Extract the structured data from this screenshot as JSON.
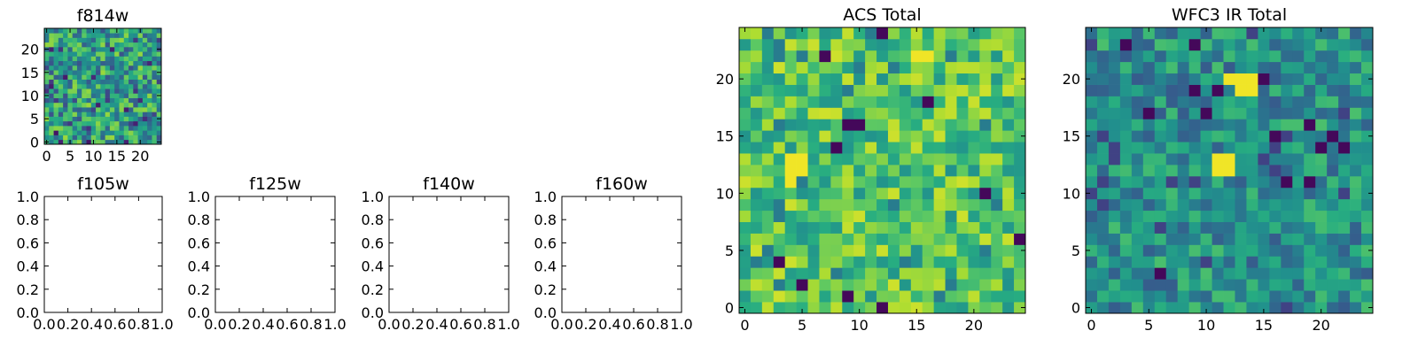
{
  "chart_data": [
    {
      "type": "heatmap",
      "title": "f814w",
      "xlim": [
        -0.5,
        24.5
      ],
      "ylim": [
        -0.5,
        24.5
      ],
      "xticks": [
        0,
        5,
        10,
        15,
        20
      ],
      "yticks": [
        0,
        5,
        10,
        15,
        20
      ],
      "shape": [
        25,
        25
      ],
      "origin": "lower",
      "colormap": "viridis",
      "grid": false
    },
    {
      "type": "heatmap",
      "title": "f105w",
      "xlim": [
        0.0,
        1.0
      ],
      "ylim": [
        0.0,
        1.0
      ],
      "xticks": [
        0.0,
        0.2,
        0.4,
        0.6,
        0.8,
        1.0
      ],
      "yticks": [
        0.0,
        0.2,
        0.4,
        0.6,
        0.8,
        1.0
      ],
      "empty": true,
      "grid": false
    },
    {
      "type": "heatmap",
      "title": "f125w",
      "xlim": [
        0.0,
        1.0
      ],
      "ylim": [
        0.0,
        1.0
      ],
      "xticks": [
        0.0,
        0.2,
        0.4,
        0.6,
        0.8,
        1.0
      ],
      "yticks": [
        0.0,
        0.2,
        0.4,
        0.6,
        0.8,
        1.0
      ],
      "empty": true,
      "grid": false
    },
    {
      "type": "heatmap",
      "title": "f140w",
      "xlim": [
        0.0,
        1.0
      ],
      "ylim": [
        0.0,
        1.0
      ],
      "xticks": [
        0.0,
        0.2,
        0.4,
        0.6,
        0.8,
        1.0
      ],
      "yticks": [
        0.0,
        0.2,
        0.4,
        0.6,
        0.8,
        1.0
      ],
      "empty": true,
      "grid": false
    },
    {
      "type": "heatmap",
      "title": "f160w",
      "xlim": [
        0.0,
        1.0
      ],
      "ylim": [
        0.0,
        1.0
      ],
      "xticks": [
        0.0,
        0.2,
        0.4,
        0.6,
        0.8,
        1.0
      ],
      "yticks": [
        0.0,
        0.2,
        0.4,
        0.6,
        0.8,
        1.0
      ],
      "empty": true,
      "grid": false
    },
    {
      "type": "heatmap",
      "title": "ACS Total",
      "xlim": [
        -0.5,
        24.5
      ],
      "ylim": [
        -0.5,
        24.5
      ],
      "xticks": [
        0,
        5,
        10,
        15,
        20
      ],
      "yticks": [
        0,
        5,
        10,
        15,
        20
      ],
      "shape": [
        25,
        25
      ],
      "origin": "lower",
      "colormap": "viridis",
      "grid": false,
      "value_bias": 0.72,
      "bright_patches": [
        [
          4,
          12
        ],
        [
          5,
          12
        ],
        [
          4,
          13
        ],
        [
          5,
          13
        ],
        [
          4,
          11
        ],
        [
          16,
          22
        ],
        [
          15,
          22
        ]
      ],
      "dark_cells": [
        [
          12,
          0
        ],
        [
          9,
          1
        ],
        [
          8,
          14
        ],
        [
          10,
          16
        ],
        [
          12,
          24
        ],
        [
          7,
          22
        ],
        [
          24,
          6
        ],
        [
          21,
          10
        ],
        [
          16,
          18
        ],
        [
          9,
          16
        ],
        [
          3,
          4
        ],
        [
          5,
          2
        ]
      ]
    },
    {
      "type": "heatmap",
      "title": "WFC3 IR Total",
      "xlim": [
        -0.5,
        24.5
      ],
      "ylim": [
        -0.5,
        24.5
      ],
      "xticks": [
        0,
        5,
        10,
        15,
        20
      ],
      "yticks": [
        0,
        5,
        10,
        15,
        20
      ],
      "shape": [
        25,
        25
      ],
      "origin": "lower",
      "colormap": "viridis",
      "grid": false,
      "value_bias": 0.5,
      "bright_patches": [
        [
          13,
          20
        ],
        [
          14,
          20
        ],
        [
          13,
          19
        ],
        [
          14,
          19
        ],
        [
          12,
          20
        ],
        [
          11,
          12
        ],
        [
          12,
          12
        ],
        [
          11,
          13
        ],
        [
          12,
          13
        ]
      ],
      "dark_cells": [
        [
          9,
          19
        ],
        [
          11,
          19
        ],
        [
          3,
          23
        ],
        [
          9,
          23
        ],
        [
          19,
          16
        ],
        [
          21,
          15
        ],
        [
          22,
          14
        ],
        [
          20,
          14
        ],
        [
          16,
          15
        ],
        [
          5,
          17
        ],
        [
          10,
          17
        ],
        [
          15,
          20
        ],
        [
          6,
          3
        ],
        [
          17,
          11
        ],
        [
          19,
          11
        ]
      ]
    }
  ]
}
